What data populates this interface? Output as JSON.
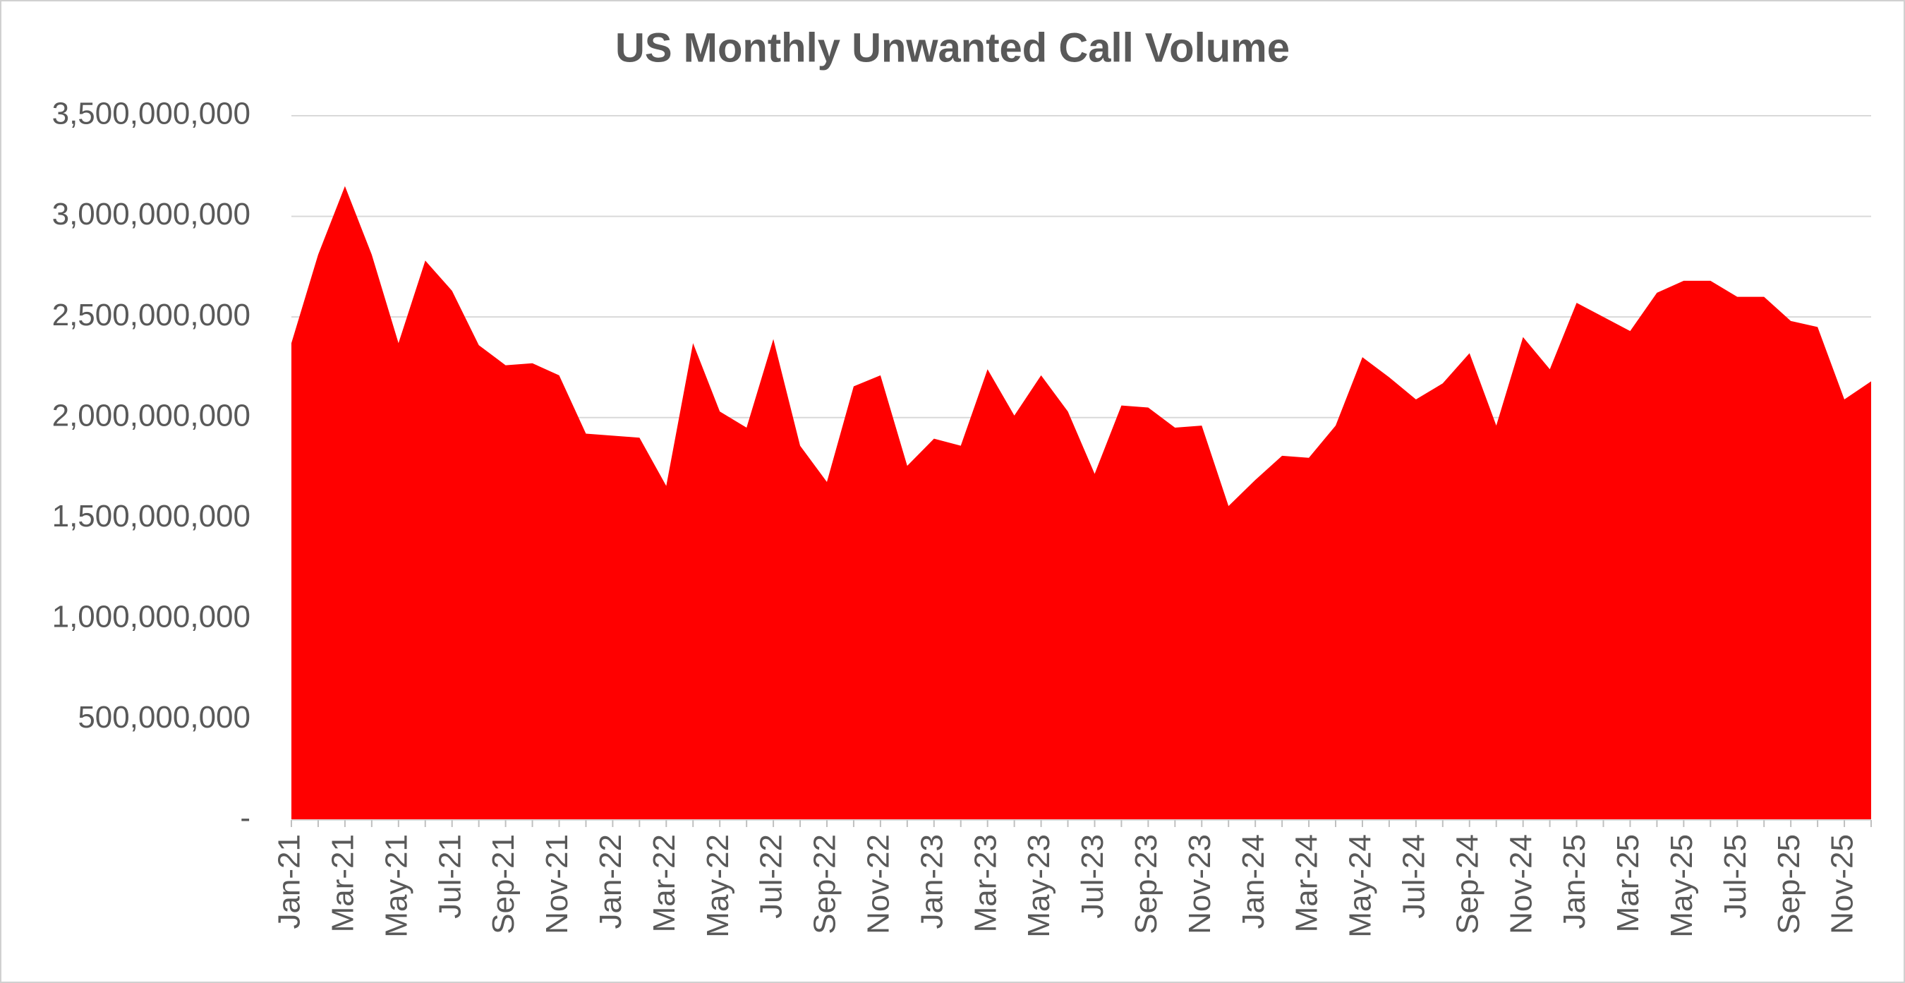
{
  "chart_data": {
    "type": "area",
    "title": "US Monthly Unwanted Call Volume",
    "categories": [
      "Jan-21",
      null,
      "Mar-21",
      null,
      "May-21",
      null,
      "Jul-21",
      null,
      "Sep-21",
      null,
      "Nov-21",
      null,
      "Jan-22",
      null,
      "Mar-22",
      null,
      "May-22",
      null,
      "Jul-22",
      null,
      "Sep-22",
      null,
      "Nov-22",
      null,
      "Jan-23",
      null,
      "Mar-23",
      null,
      "May-23",
      null,
      "Jul-23",
      null,
      "Sep-23",
      null,
      "Nov-23",
      null,
      "Jan-24",
      null,
      "Mar-24",
      null,
      "May-24",
      null,
      "Jul-24",
      null,
      "Sep-24",
      null,
      "Nov-24",
      null,
      "Jan-25",
      null,
      "Mar-25",
      null,
      "May-25",
      null,
      "Jul-25",
      null,
      "Sep-25",
      null,
      "Nov-25",
      null
    ],
    "values": [
      2370000000,
      2810000000,
      3150000000,
      2810000000,
      2370000000,
      2780000000,
      2630000000,
      2360000000,
      2260000000,
      2270000000,
      2210000000,
      1920000000,
      1910000000,
      1900000000,
      1660000000,
      2370000000,
      2030000000,
      1950000000,
      2390000000,
      1860000000,
      1680000000,
      2155000000,
      2210000000,
      1760000000,
      1895000000,
      1860000000,
      2240000000,
      2010000000,
      2210000000,
      2030000000,
      1720000000,
      2060000000,
      2050000000,
      1950000000,
      1960000000,
      1560000000,
      1690000000,
      1810000000,
      1800000000,
      1960000000,
      2300000000,
      2200000000,
      2090000000,
      2170000000,
      2320000000,
      1960000000,
      2400000000,
      2240000000,
      2570000000,
      2500000000,
      2430000000,
      2620000000,
      2680000000,
      2680000000,
      2600000000,
      2600000000,
      2480000000,
      2450000000,
      2090000000,
      2180000000
    ],
    "color": "#ff0000",
    "ylim": [
      0,
      3500000000
    ],
    "yticks": [
      {
        "value": 0,
        "label": "-"
      },
      {
        "value": 500000000,
        "label": "500,000,000"
      },
      {
        "value": 1000000000,
        "label": "1,000,000,000"
      },
      {
        "value": 1500000000,
        "label": "1,500,000,000"
      },
      {
        "value": 2000000000,
        "label": "2,000,000,000"
      },
      {
        "value": 2500000000,
        "label": "2,500,000,000"
      },
      {
        "value": 3000000000,
        "label": "3,000,000,000"
      },
      {
        "value": 3500000000,
        "label": "3,500,000,000"
      }
    ],
    "grid": true
  }
}
